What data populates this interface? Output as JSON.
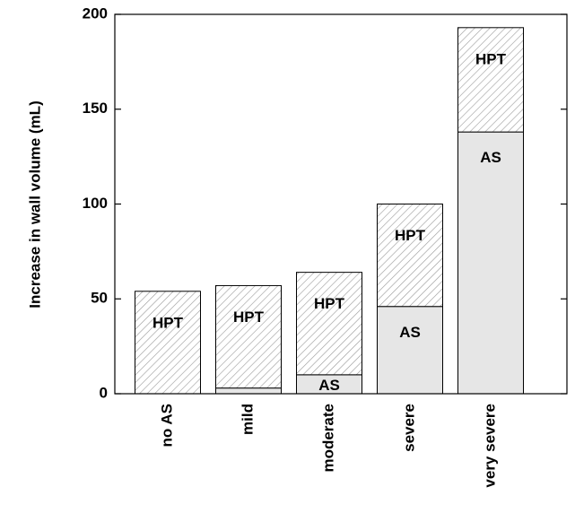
{
  "chart_data": {
    "type": "stacked_bar",
    "ylabel": "Increase in wall volume (mL)",
    "categories": [
      "no AS",
      "mild",
      "moderate",
      "severe",
      "very severe"
    ],
    "series": [
      {
        "name": "AS",
        "color": "#e6e6e6",
        "values": [
          0,
          3,
          10,
          46,
          138
        ]
      },
      {
        "name": "HPT",
        "color": "#9a9a9a",
        "values": [
          54,
          54,
          54,
          54,
          55
        ]
      }
    ],
    "ylim": [
      0,
      200
    ],
    "yticks": [
      0,
      50,
      100,
      150,
      200
    ]
  }
}
